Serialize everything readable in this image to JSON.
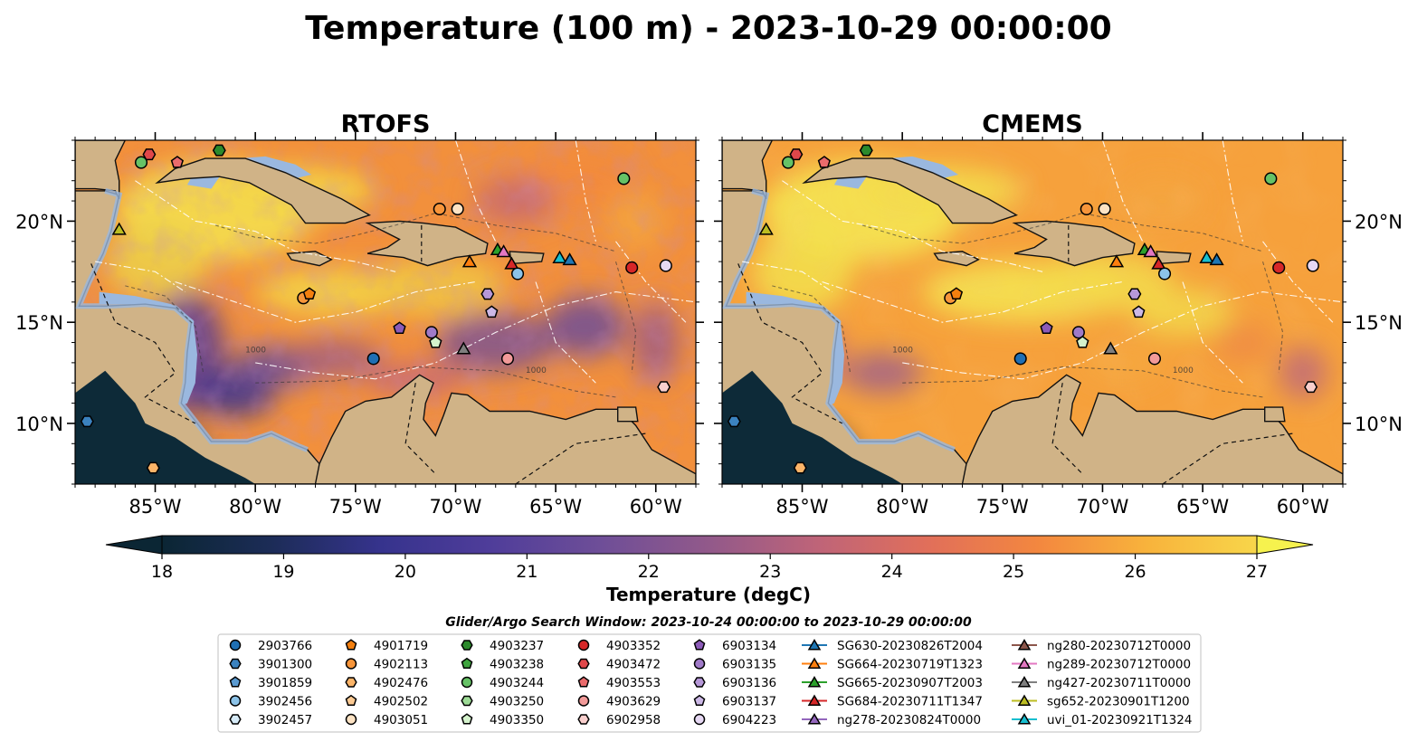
{
  "figure": {
    "title": "Temperature (100 m) - 2023-10-29 00:00:00"
  },
  "chart_data": {
    "type": "heatmap",
    "panels": [
      {
        "title": "RTOFS",
        "variant": "rtofs"
      },
      {
        "title": "CMEMS",
        "variant": "cmems"
      }
    ],
    "lon_range": [
      -89,
      -58
    ],
    "lat_range": [
      7,
      24
    ],
    "x_ticks": [
      -85,
      -80,
      -75,
      -70,
      -65,
      -60
    ],
    "x_tick_labels": [
      "85°W",
      "80°W",
      "75°W",
      "70°W",
      "65°W",
      "60°W"
    ],
    "y_ticks": [
      10,
      15,
      20
    ],
    "y_tick_labels": [
      "10°N",
      "15°N",
      "20°N"
    ],
    "contour_labels": [
      "1000",
      "1000"
    ],
    "colorbar": {
      "label": "Temperature (degC)",
      "min": 18,
      "max": 27,
      "ticks": [
        18,
        19,
        20,
        21,
        22,
        23,
        24,
        25,
        26,
        27
      ],
      "extend": "both"
    },
    "legend_title": "Glider/Argo Search Window: 2023-10-24 00:00:00 to 2023-10-29 00:00:00",
    "legend_columns": [
      [
        {
          "label": "2903766",
          "marker": "circle",
          "color": "#1f6fb4"
        },
        {
          "label": "3901300",
          "marker": "hexagon",
          "color": "#3b82bf"
        },
        {
          "label": "3901859",
          "marker": "pentagon",
          "color": "#5a9ad0"
        },
        {
          "label": "3902456",
          "marker": "circle",
          "color": "#8cc3e8"
        },
        {
          "label": "3902457",
          "marker": "hexagon",
          "color": "#d6ebf8"
        }
      ],
      [
        {
          "label": "4901719",
          "marker": "pentagon",
          "color": "#f37f0f"
        },
        {
          "label": "4902113",
          "marker": "circle",
          "color": "#f7953a"
        },
        {
          "label": "4902476",
          "marker": "hexagon",
          "color": "#fbb468"
        },
        {
          "label": "4902502",
          "marker": "pentagon",
          "color": "#fcca93"
        },
        {
          "label": "4903051",
          "marker": "circle",
          "color": "#fde3c4"
        }
      ],
      [
        {
          "label": "4903237",
          "marker": "hexagon",
          "color": "#2c8a2c"
        },
        {
          "label": "4903238",
          "marker": "pentagon",
          "color": "#3fa53f"
        },
        {
          "label": "4903244",
          "marker": "circle",
          "color": "#66c266"
        },
        {
          "label": "4903250",
          "marker": "hexagon",
          "color": "#9ddb96"
        },
        {
          "label": "4903350",
          "marker": "pentagon",
          "color": "#d4f2cc"
        }
      ],
      [
        {
          "label": "4903352",
          "marker": "circle",
          "color": "#d62728"
        },
        {
          "label": "4903472",
          "marker": "hexagon",
          "color": "#e0474a"
        },
        {
          "label": "4903553",
          "marker": "pentagon",
          "color": "#ea6b6c"
        },
        {
          "label": "4903629",
          "marker": "circle",
          "color": "#f29a99"
        },
        {
          "label": "6902958",
          "marker": "hexagon",
          "color": "#f9cfcd"
        }
      ],
      [
        {
          "label": "6903134",
          "marker": "pentagon",
          "color": "#8c5bb8"
        },
        {
          "label": "6903135",
          "marker": "circle",
          "color": "#a07ac8"
        },
        {
          "label": "6903136",
          "marker": "hexagon",
          "color": "#b698d8"
        },
        {
          "label": "6903137",
          "marker": "pentagon",
          "color": "#ccb8e6"
        },
        {
          "label": "6904223",
          "marker": "circle",
          "color": "#e6d8f3"
        }
      ],
      [
        {
          "label": "SG630-20230826T2004",
          "marker": "triangle",
          "color": "#1f77b4"
        },
        {
          "label": "SG664-20230719T1323",
          "marker": "triangle",
          "color": "#ff7f0e"
        },
        {
          "label": "SG665-20230907T2003",
          "marker": "triangle",
          "color": "#2ca02c"
        },
        {
          "label": "SG684-20230711T1347",
          "marker": "triangle",
          "color": "#d62728"
        },
        {
          "label": "ng278-20230824T0000",
          "marker": "triangle",
          "color": "#9467bd"
        }
      ],
      [
        {
          "label": "ng280-20230712T0000",
          "marker": "triangle",
          "color": "#8c564b"
        },
        {
          "label": "ng289-20230712T0000",
          "marker": "triangle",
          "color": "#e377c2"
        },
        {
          "label": "ng427-20230711T0000",
          "marker": "triangle",
          "color": "#7f7f7f"
        },
        {
          "label": "sg652-20230901T1200",
          "marker": "triangle",
          "color": "#bcbd22"
        },
        {
          "label": "uvi_01-20230921T1324",
          "marker": "triangle",
          "color": "#17becf"
        }
      ]
    ],
    "points": [
      {
        "lon": -85.7,
        "lat": 22.9,
        "marker": "circle",
        "color": "#66c266"
      },
      {
        "lon": -85.3,
        "lat": 23.3,
        "marker": "hexagon",
        "color": "#e0474a"
      },
      {
        "lon": -83.9,
        "lat": 22.9,
        "marker": "pentagon",
        "color": "#ea6b6c"
      },
      {
        "lon": -81.8,
        "lat": 23.5,
        "marker": "hexagon",
        "color": "#2c8a2c"
      },
      {
        "lon": -86.8,
        "lat": 19.6,
        "marker": "triangle",
        "color": "#bcbd22"
      },
      {
        "lon": -61.6,
        "lat": 22.1,
        "marker": "circle",
        "color": "#66c266"
      },
      {
        "lon": -70.8,
        "lat": 20.6,
        "marker": "circle",
        "color": "#f7953a"
      },
      {
        "lon": -69.9,
        "lat": 20.6,
        "marker": "circle",
        "color": "#fde3c4"
      },
      {
        "lon": -77.6,
        "lat": 16.2,
        "marker": "circle",
        "color": "#f7953a"
      },
      {
        "lon": -77.3,
        "lat": 16.4,
        "marker": "pentagon",
        "color": "#f37f0f"
      },
      {
        "lon": -69.3,
        "lat": 18.0,
        "marker": "triangle",
        "color": "#ff7f0e"
      },
      {
        "lon": -67.9,
        "lat": 18.6,
        "marker": "triangle",
        "color": "#2ca02c"
      },
      {
        "lon": -67.6,
        "lat": 18.5,
        "marker": "triangle",
        "color": "#e377c2"
      },
      {
        "lon": -67.2,
        "lat": 17.9,
        "marker": "triangle",
        "color": "#d62728"
      },
      {
        "lon": -66.9,
        "lat": 17.4,
        "marker": "circle",
        "color": "#8cc3e8"
      },
      {
        "lon": -64.8,
        "lat": 18.2,
        "marker": "triangle",
        "color": "#17becf"
      },
      {
        "lon": -64.3,
        "lat": 18.1,
        "marker": "triangle",
        "color": "#1f77b4"
      },
      {
        "lon": -61.2,
        "lat": 17.7,
        "marker": "circle",
        "color": "#d62728"
      },
      {
        "lon": -59.5,
        "lat": 17.8,
        "marker": "circle",
        "color": "#e6d8f3"
      },
      {
        "lon": -68.4,
        "lat": 16.4,
        "marker": "hexagon",
        "color": "#b698d8"
      },
      {
        "lon": -68.2,
        "lat": 15.5,
        "marker": "pentagon",
        "color": "#ccb8e6"
      },
      {
        "lon": -72.8,
        "lat": 14.7,
        "marker": "pentagon",
        "color": "#8c5bb8"
      },
      {
        "lon": -71.2,
        "lat": 14.5,
        "marker": "circle",
        "color": "#a07ac8"
      },
      {
        "lon": -71.0,
        "lat": 14.0,
        "marker": "pentagon",
        "color": "#d4f2cc"
      },
      {
        "lon": -69.6,
        "lat": 13.7,
        "marker": "triangle",
        "color": "#7f7f7f"
      },
      {
        "lon": -74.1,
        "lat": 13.2,
        "marker": "circle",
        "color": "#1f6fb4"
      },
      {
        "lon": -67.4,
        "lat": 13.2,
        "marker": "circle",
        "color": "#f29a99"
      },
      {
        "lon": -59.6,
        "lat": 11.8,
        "marker": "hexagon",
        "color": "#f9cfcd"
      },
      {
        "lon": -88.4,
        "lat": 10.1,
        "marker": "hexagon",
        "color": "#3b82bf"
      },
      {
        "lon": -85.1,
        "lat": 7.8,
        "marker": "hexagon",
        "color": "#fbb468"
      }
    ]
  }
}
